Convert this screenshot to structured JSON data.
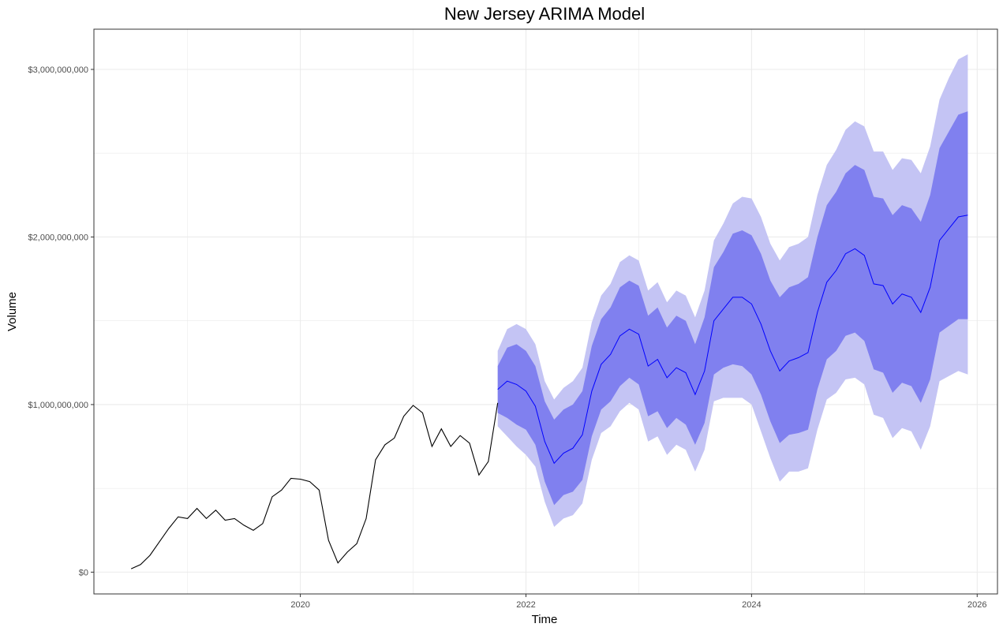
{
  "chart_data": {
    "type": "line",
    "title": "New Jersey ARIMA Model",
    "xlabel": "Time",
    "ylabel": "Volume",
    "xlim": [
      2018.17,
      2026.18
    ],
    "ylim": [
      -130000000,
      3240000000
    ],
    "x_ticks": [
      2020,
      2022,
      2024,
      2026
    ],
    "x_tick_labels": [
      "2020",
      "2022",
      "2024",
      "2026"
    ],
    "y_ticks": [
      0,
      1000000000,
      2000000000,
      3000000000
    ],
    "y_tick_labels": [
      "$0",
      "$1,000,000,000",
      "$2,000,000,000",
      "$3,000,000,000"
    ],
    "grid": true,
    "colors": {
      "history": "#000000",
      "forecast": "#0000ff",
      "band80": "#8080ef",
      "band95": "#c4c4f4",
      "grid": "#ebebeb",
      "border": "#333333"
    },
    "history": {
      "start": "2018-07",
      "values": [
        20000000,
        45000000,
        100000000,
        180000000,
        260000000,
        330000000,
        320000000,
        380000000,
        320000000,
        370000000,
        310000000,
        320000000,
        280000000,
        250000000,
        290000000,
        450000000,
        490000000,
        560000000,
        555000000,
        540000000,
        490000000,
        190000000,
        55000000,
        120000000,
        170000000,
        320000000,
        670000000,
        760000000,
        800000000,
        930000000,
        995000000,
        950000000,
        750000000,
        855000000,
        750000000,
        815000000,
        770000000,
        580000000,
        660000000,
        1010000000
      ]
    },
    "forecast": {
      "start": "2021-10",
      "mean": [
        1090000000,
        1140000000,
        1120000000,
        1080000000,
        990000000,
        780000000,
        650000000,
        710000000,
        740000000,
        820000000,
        1080000000,
        1240000000,
        1300000000,
        1410000000,
        1450000000,
        1420000000,
        1230000000,
        1270000000,
        1160000000,
        1220000000,
        1190000000,
        1060000000,
        1200000000,
        1500000000,
        1570000000,
        1640000000,
        1640000000,
        1600000000,
        1480000000,
        1320000000,
        1200000000,
        1260000000,
        1280000000,
        1310000000,
        1550000000,
        1730000000,
        1800000000,
        1900000000,
        1930000000,
        1890000000,
        1720000000,
        1710000000,
        1600000000,
        1660000000,
        1640000000,
        1550000000,
        1700000000,
        1980000000,
        2050000000,
        2120000000,
        2130000000
      ],
      "lo80": [
        950000000,
        920000000,
        880000000,
        850000000,
        760000000,
        540000000,
        400000000,
        460000000,
        480000000,
        550000000,
        810000000,
        970000000,
        1020000000,
        1110000000,
        1160000000,
        1120000000,
        930000000,
        960000000,
        860000000,
        920000000,
        880000000,
        760000000,
        890000000,
        1180000000,
        1220000000,
        1240000000,
        1230000000,
        1180000000,
        1060000000,
        900000000,
        770000000,
        820000000,
        830000000,
        850000000,
        1090000000,
        1270000000,
        1320000000,
        1410000000,
        1430000000,
        1380000000,
        1210000000,
        1190000000,
        1070000000,
        1130000000,
        1110000000,
        1010000000,
        1150000000,
        1430000000,
        1470000000,
        1510000000,
        1510000000
      ],
      "hi80": [
        1230000000,
        1340000000,
        1360000000,
        1320000000,
        1230000000,
        1020000000,
        910000000,
        970000000,
        1000000000,
        1080000000,
        1350000000,
        1510000000,
        1580000000,
        1700000000,
        1740000000,
        1710000000,
        1530000000,
        1580000000,
        1460000000,
        1530000000,
        1500000000,
        1360000000,
        1520000000,
        1820000000,
        1910000000,
        2020000000,
        2040000000,
        2010000000,
        1900000000,
        1740000000,
        1640000000,
        1700000000,
        1720000000,
        1760000000,
        2000000000,
        2190000000,
        2270000000,
        2380000000,
        2430000000,
        2400000000,
        2240000000,
        2230000000,
        2130000000,
        2190000000,
        2170000000,
        2090000000,
        2250000000,
        2530000000,
        2630000000,
        2730000000,
        2750000000
      ],
      "lo95": [
        870000000,
        810000000,
        750000000,
        700000000,
        630000000,
        420000000,
        270000000,
        320000000,
        340000000,
        410000000,
        670000000,
        830000000,
        870000000,
        960000000,
        1010000000,
        970000000,
        780000000,
        810000000,
        700000000,
        760000000,
        730000000,
        600000000,
        730000000,
        1020000000,
        1040000000,
        1040000000,
        1040000000,
        1000000000,
        840000000,
        680000000,
        540000000,
        600000000,
        600000000,
        620000000,
        850000000,
        1030000000,
        1070000000,
        1150000000,
        1160000000,
        1120000000,
        940000000,
        920000000,
        800000000,
        860000000,
        840000000,
        730000000,
        870000000,
        1140000000,
        1170000000,
        1200000000,
        1180000000
      ],
      "hi95": [
        1320000000,
        1450000000,
        1480000000,
        1450000000,
        1360000000,
        1140000000,
        1030000000,
        1100000000,
        1140000000,
        1220000000,
        1490000000,
        1650000000,
        1720000000,
        1850000000,
        1890000000,
        1860000000,
        1680000000,
        1730000000,
        1610000000,
        1680000000,
        1650000000,
        1520000000,
        1680000000,
        1980000000,
        2080000000,
        2200000000,
        2240000000,
        2230000000,
        2120000000,
        1960000000,
        1860000000,
        1940000000,
        1960000000,
        2000000000,
        2250000000,
        2430000000,
        2520000000,
        2640000000,
        2690000000,
        2660000000,
        2510000000,
        2510000000,
        2400000000,
        2470000000,
        2460000000,
        2380000000,
        2540000000,
        2820000000,
        2950000000,
        3060000000,
        3090000000
      ]
    }
  }
}
